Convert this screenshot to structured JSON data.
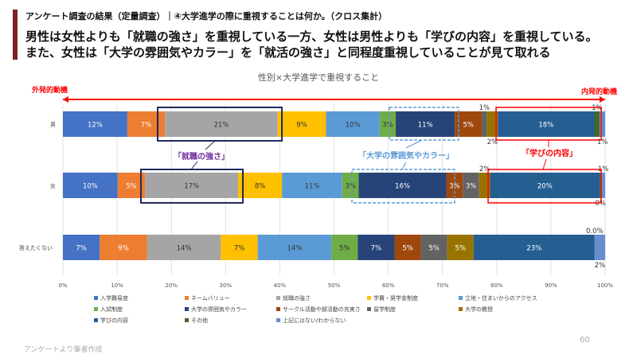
{
  "header": {
    "subtitle": "アンケート調査の結果（定量調査）｜④大学進学の際に重視することは何か。（クロス集計）",
    "headline_1": "男性は女性よりも「就職の強さ」を重視している一方、女性は男性よりも「学びの内容」を重視している。",
    "headline_2": "また、女性は「大学の雰囲気やカラー」を「就活の強さ」と同程度重視していることが見て取れる"
  },
  "arrow": {
    "left_label": "外発的動機",
    "right_label": "内発的動機",
    "color": "#FF0000"
  },
  "annotations": {
    "job": "「就職の強さ」",
    "atmosphere": "「大学の雰囲気やカラー」",
    "learning": "「学びの内容」"
  },
  "chart_data": {
    "type": "bar",
    "orientation": "horizontal",
    "stacked": "100%",
    "title": "性別×大学進学で重視すること",
    "categories": [
      "男",
      "女",
      "答えたくない"
    ],
    "xlim": [
      0,
      100
    ],
    "xticks": [
      "0%",
      "10%",
      "20%",
      "30%",
      "40%",
      "50%",
      "60%",
      "70%",
      "80%",
      "90%",
      "100%"
    ],
    "grid": true,
    "legend": "bottom",
    "series": [
      {
        "name": "入学難易度",
        "color": "#4472C4",
        "values": [
          12,
          10,
          7
        ],
        "labels": [
          "12%",
          "10%",
          "7%"
        ]
      },
      {
        "name": "ネームバリュー",
        "color": "#ED7D31",
        "values": [
          7,
          5,
          9
        ],
        "labels": [
          "7%",
          "5%",
          "9%"
        ]
      },
      {
        "name": "就職の強さ",
        "color": "#A5A5A5",
        "values": [
          21,
          17,
          14
        ],
        "labels": [
          "21%",
          "17%",
          "14%"
        ]
      },
      {
        "name": "学費・奨学金制度",
        "color": "#FFC000",
        "values": [
          9,
          8,
          7
        ],
        "labels": [
          "9%",
          "8%",
          "7%"
        ]
      },
      {
        "name": "立地・住まいからのアクセス",
        "color": "#5B9BD5",
        "values": [
          10,
          11,
          14
        ],
        "labels": [
          "10%",
          "11%",
          "14%"
        ]
      },
      {
        "name": "入試制度",
        "color": "#70AD47",
        "values": [
          3,
          3,
          5
        ],
        "labels": [
          "3%",
          "3%",
          "5%"
        ]
      },
      {
        "name": "大学の雰囲気やカラー",
        "color": "#264478",
        "values": [
          11,
          16,
          7
        ],
        "labels": [
          "11%",
          "16%",
          "7%"
        ]
      },
      {
        "name": "サークル活動や部活動の充実さ",
        "color": "#9E480E",
        "values": [
          5,
          3,
          5
        ],
        "labels": [
          "5%",
          "3%",
          "5%"
        ]
      },
      {
        "name": "留学制度",
        "color": "#636363",
        "values": [
          1,
          3,
          5
        ],
        "labels": [
          "1%",
          "3%",
          "5%"
        ]
      },
      {
        "name": "大学の教授",
        "color": "#997300",
        "values": [
          2,
          2,
          5
        ],
        "labels": [
          "2%",
          "2%",
          "5%"
        ]
      },
      {
        "name": "学びの内容",
        "color": "#255E91",
        "values": [
          18,
          20,
          23
        ],
        "labels": [
          "18%",
          "20%",
          "23%"
        ]
      },
      {
        "name": "その他",
        "color": "#43682B",
        "values": [
          1,
          0.3,
          0
        ],
        "labels": [
          "1%",
          "0%",
          "0.0%"
        ]
      },
      {
        "name": "上記にはない/わからない",
        "color": "#698ED0",
        "values": [
          1,
          0.7,
          2
        ],
        "labels": [
          "1%",
          "1%",
          "2%"
        ]
      }
    ]
  },
  "footer": {
    "source": "アンケートより筆者作成",
    "page": "60"
  }
}
